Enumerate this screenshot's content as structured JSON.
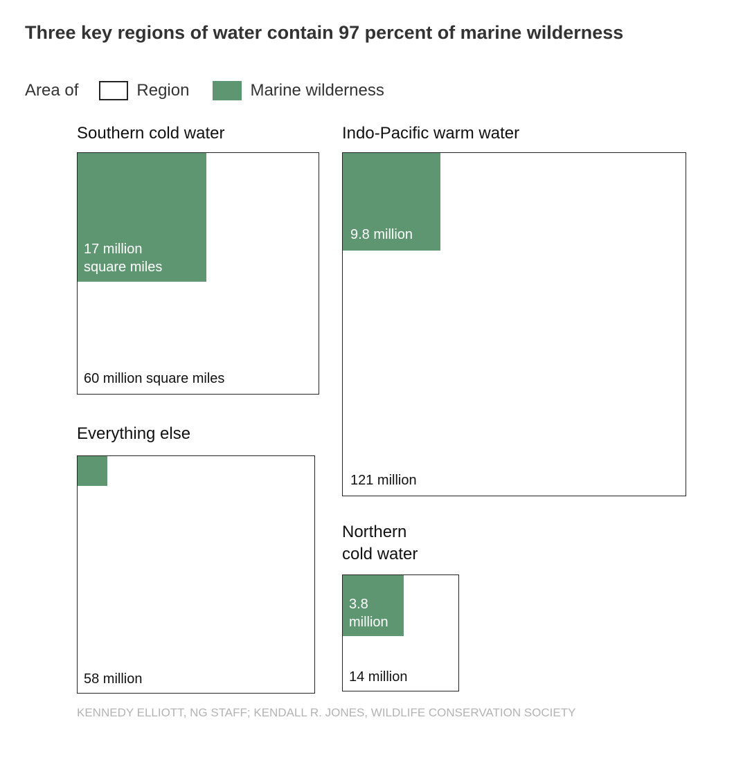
{
  "chart_data": {
    "type": "nested-square-area",
    "title": "Three key regions of water contain 97 percent of marine wilderness",
    "legend": {
      "lead": "Area of",
      "items": [
        {
          "label": "Region",
          "color": "#ffffff",
          "border": "#222222"
        },
        {
          "label": "Marine wilderness",
          "color": "#5f9672"
        }
      ],
      "placement": "top-left"
    },
    "units": "million square miles",
    "regions": [
      {
        "id": "southern",
        "name": "Southern cold water",
        "region_area": 60,
        "wilderness_area": 17,
        "region_label": "60 million square miles",
        "wilderness_label": "17 million\nsquare miles"
      },
      {
        "id": "indopacific",
        "name": "Indo-Pacific warm water",
        "region_area": 121,
        "wilderness_area": 9.8,
        "region_label": "121 million",
        "wilderness_label": "9.8 million"
      },
      {
        "id": "else",
        "name": "Everything else",
        "region_area": 58,
        "wilderness_area": 0.9,
        "region_label": "58 million",
        "wilderness_label": ""
      },
      {
        "id": "northern",
        "name": "Northern\ncold water",
        "region_area": 14,
        "wilderness_area": 3.8,
        "region_label": "14 million",
        "wilderness_label": "3.8\nmillion"
      }
    ],
    "source": "KENNEDY ELLIOTT, NG STAFF; KENDALL R. JONES, WILDLIFE CONSERVATION SOCIETY"
  }
}
